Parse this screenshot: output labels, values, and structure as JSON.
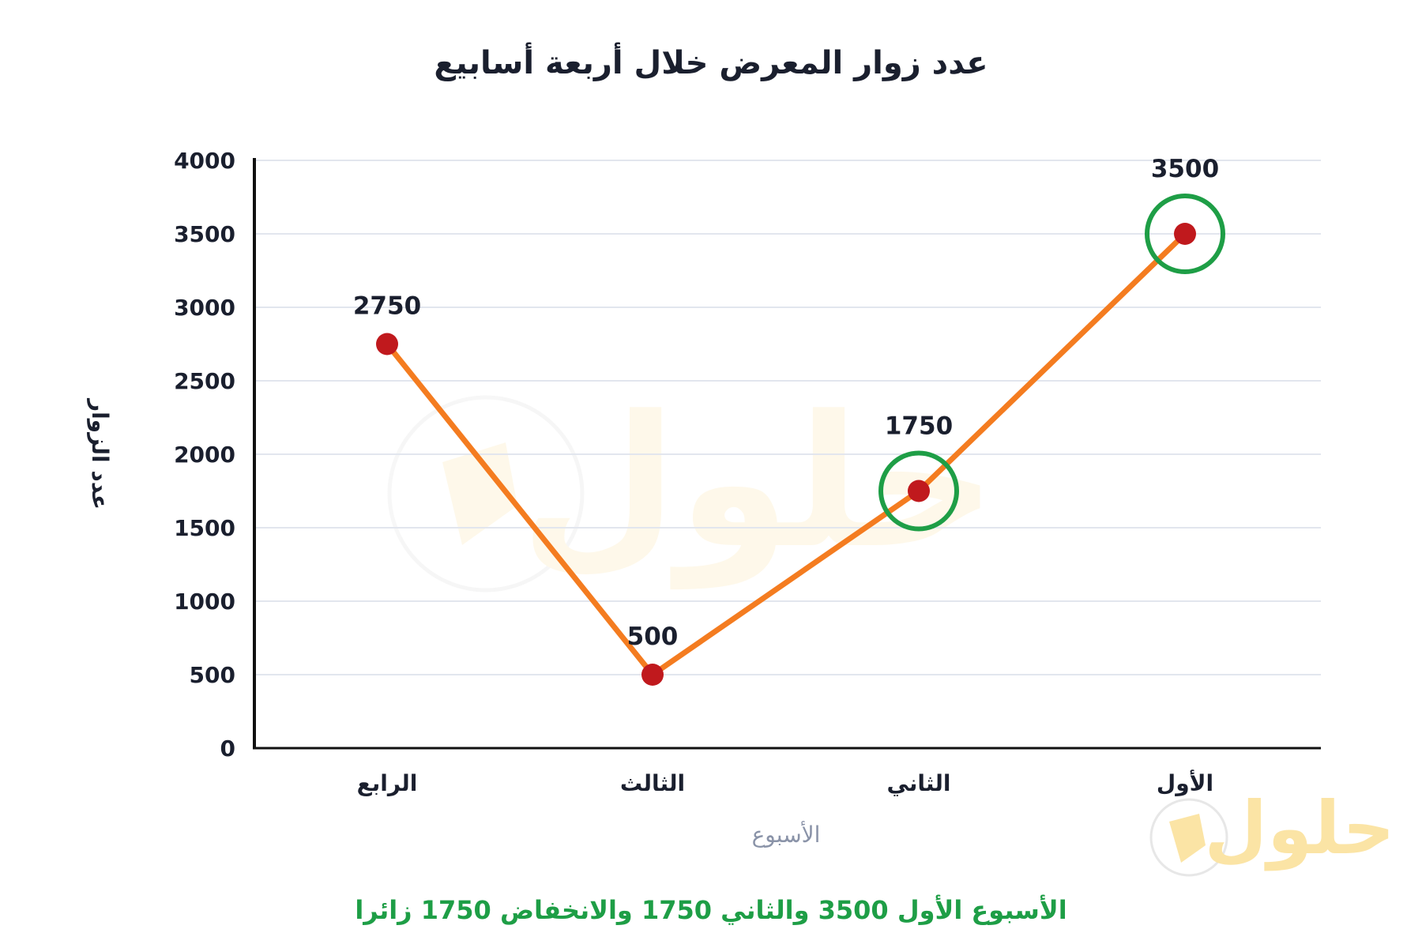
{
  "chart_data": {
    "type": "line",
    "title": "عدد زوار المعرض خلال أربعة أسابيع",
    "xlabel": "الأسبوع",
    "ylabel": "عدد الزوار",
    "categories": [
      "الرابع",
      "الثالث",
      "الثاني",
      "الأول"
    ],
    "values": [
      2750,
      500,
      1750,
      3500
    ],
    "data_labels": [
      "2750",
      "500",
      "1750",
      "3500"
    ],
    "highlighted": [
      "الثاني",
      "الأول"
    ],
    "ylim": [
      0,
      4000
    ],
    "yticks": [
      0,
      500,
      1000,
      1500,
      2000,
      2500,
      3000,
      3500,
      4000
    ],
    "ytick_labels": [
      "0",
      "500",
      "1000",
      "1500",
      "2000",
      "2500",
      "3000",
      "3500",
      "4000"
    ],
    "grid": true,
    "caption": "الأسبوع الأول 3500 والثاني 1750 والانخفاض 1750 زائرا",
    "colors": {
      "line": "#f47c20",
      "marker": "#c0191d",
      "highlight_ring": "#1e9e46",
      "grid": "#e2e6ee",
      "axis": "#111111",
      "caption": "#1e9e46",
      "xlabel": "#8a93a8"
    }
  },
  "watermark": {
    "logo_text": "حلول",
    "logo_icon": "document-logo-icon"
  }
}
